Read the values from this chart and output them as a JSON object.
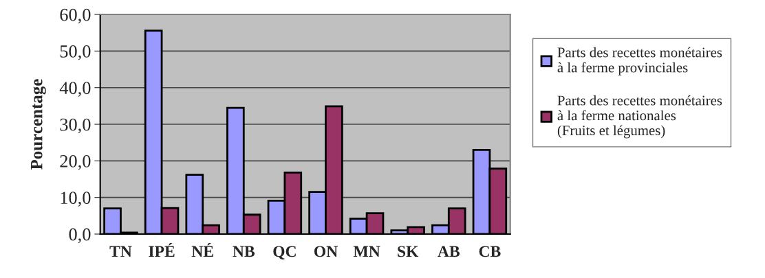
{
  "chart_data": {
    "type": "bar",
    "ylabel": "Pourcentage",
    "categories": [
      "TN",
      "IPÉ",
      "NÉ",
      "NB",
      "QC",
      "ON",
      "MN",
      "SK",
      "AB",
      "CB"
    ],
    "series": [
      {
        "name": "Parts des recettes monétaires\nà la ferme provinciales",
        "color": "#9999ff",
        "values": [
          7.0,
          55.6,
          16.2,
          34.5,
          9.1,
          11.5,
          4.2,
          1.0,
          2.4,
          23.0
        ]
      },
      {
        "name": "Parts des recettes monétaires\nà la ferme nationales\n(Fruits et légumes)",
        "color": "#993366",
        "values": [
          0.4,
          7.1,
          2.4,
          5.3,
          16.8,
          34.9,
          5.7,
          1.9,
          7.0,
          17.9
        ]
      }
    ],
    "ylim": [
      0,
      60
    ],
    "yticks": [
      {
        "value": 0,
        "label": "0,0"
      },
      {
        "value": 10,
        "label": "10,0"
      },
      {
        "value": 20,
        "label": "20,0"
      },
      {
        "value": 30,
        "label": "30,0"
      },
      {
        "value": 40,
        "label": "40,0"
      },
      {
        "value": 50,
        "label": "50,0"
      },
      {
        "value": 60,
        "label": "60,0"
      }
    ],
    "grid": "y",
    "legend": "right"
  }
}
